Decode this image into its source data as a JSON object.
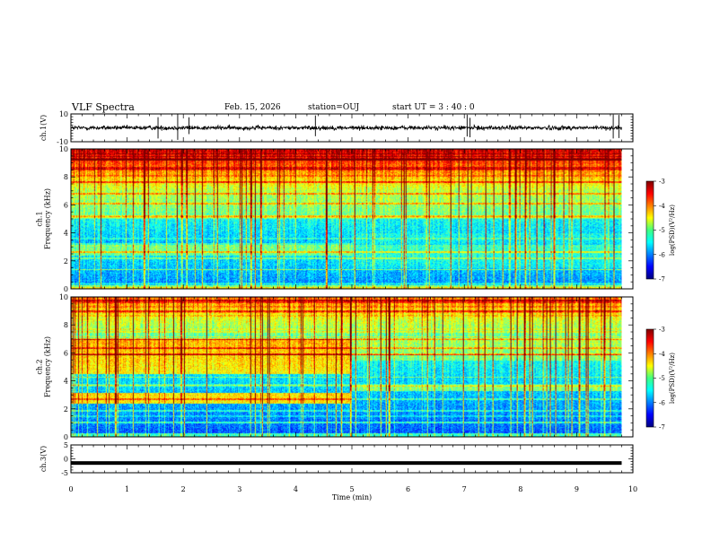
{
  "header": {
    "title": "VLF Spectra",
    "date": "Feb. 15, 2026",
    "station": "station=OUJ",
    "start_ut": "start  UT =  3 : 40 : 0"
  },
  "chart_data": [
    {
      "type": "line",
      "name": "ch1-waveform",
      "ylabel": "ch.1(V)",
      "ylim": [
        -10,
        10
      ],
      "yticks": [
        "10",
        "-10"
      ],
      "baseline": 0,
      "noise_amplitude": 1.5,
      "spikes_min": [
        1.55,
        1.9,
        2.1,
        4.35,
        7.05,
        7.1,
        9.65,
        9.75
      ]
    },
    {
      "type": "heatmap",
      "name": "ch1-spectrogram",
      "ylabel": "ch.1\nFrequency (kHz)",
      "ylim": [
        0,
        10
      ],
      "yticks": [
        "0",
        "2",
        "4",
        "6",
        "8",
        "10"
      ],
      "x_data_max": 9.8,
      "regime_change_min": 5.0,
      "colorbar": {
        "label": "log(PSD)(V²/Hz)",
        "range": [
          -7,
          -3
        ],
        "ticks": [
          "-3",
          "-4",
          "-5",
          "-6",
          "-7"
        ]
      }
    },
    {
      "type": "heatmap",
      "name": "ch2-spectrogram",
      "ylabel": "ch.2\nFrequency (kHz)",
      "ylim": [
        0,
        10
      ],
      "yticks": [
        "0",
        "2",
        "4",
        "6",
        "8",
        "10"
      ],
      "x_data_max": 9.8,
      "regime_change_min": 4.95,
      "colorbar": {
        "label": "log(PSD)(V²/Hz)",
        "range": [
          -7,
          -3
        ],
        "ticks": [
          "-3",
          "-4",
          "-5",
          "-6",
          "-7"
        ]
      }
    },
    {
      "type": "line",
      "name": "ch3-waveform",
      "ylabel": "ch.3(V)",
      "ylim": [
        -5,
        5
      ],
      "yticks": [
        "5",
        "0",
        "-5"
      ],
      "baseline": -1.5,
      "noise_amplitude": 0.15
    }
  ],
  "xaxis": {
    "label": "Time (min)",
    "range": [
      0,
      10
    ],
    "ticks": [
      "0",
      "1",
      "2",
      "3",
      "4",
      "5",
      "6",
      "7",
      "8",
      "9",
      "10"
    ]
  },
  "colors": {
    "ink": "#000000",
    "background": "#ffffff"
  }
}
